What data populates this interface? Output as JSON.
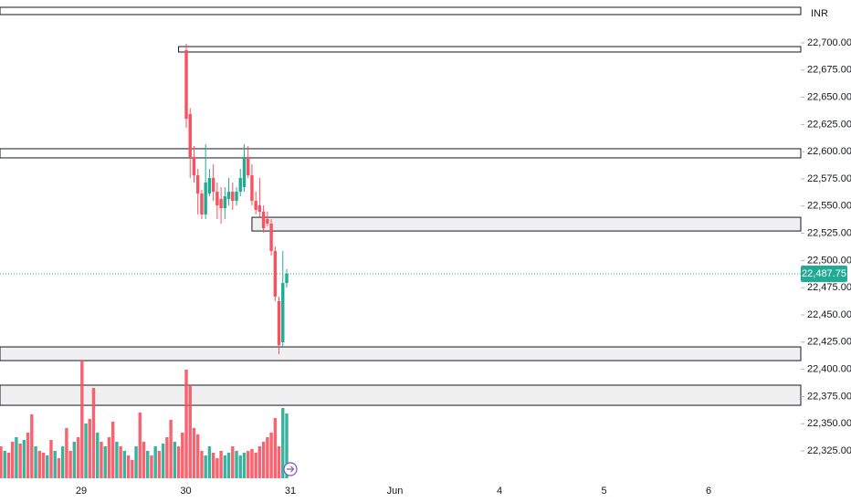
{
  "chart_data": {
    "type": "candlestick",
    "currency": "INR",
    "ylim": [
      22303.2,
      22739.4
    ],
    "yticks": [
      {
        "value": 22325,
        "label": "22,325.00"
      },
      {
        "value": 22350,
        "label": "22,350.00"
      },
      {
        "value": 22375,
        "label": "22,375.00"
      },
      {
        "value": 22400,
        "label": "22,400.00"
      },
      {
        "value": 22425,
        "label": "22,425.00"
      },
      {
        "value": 22450,
        "label": "22,450.00"
      },
      {
        "value": 22475,
        "label": "22,475.00"
      },
      {
        "value": 22500,
        "label": "22,500.00"
      },
      {
        "value": 22525,
        "label": "22,525.00"
      },
      {
        "value": 22550,
        "label": "22,550.00"
      },
      {
        "value": 22575,
        "label": "22,575.00"
      },
      {
        "value": 22600,
        "label": "22,600.00"
      },
      {
        "value": 22625,
        "label": "22,625.00"
      },
      {
        "value": 22650,
        "label": "22,650.00"
      },
      {
        "value": 22675,
        "label": "22,675.00"
      },
      {
        "value": 22700,
        "label": "22,700.00"
      }
    ],
    "categories": [
      "29",
      "30",
      "31",
      "Jun",
      "4",
      "5",
      "6"
    ],
    "up_color": "#22ab94",
    "down_color": "#f7525f",
    "candles": [
      {
        "o": 22693.3,
        "h": 22699.1,
        "l": 22621.9,
        "c": 22630.3
      },
      {
        "o": 22634.5,
        "h": 22640.0,
        "l": 22575.8,
        "c": 22595.1
      },
      {
        "o": 22595.1,
        "h": 22605.2,
        "l": 22571.6,
        "c": 22578.3
      },
      {
        "o": 22578.3,
        "h": 22584.2,
        "l": 22542.3,
        "c": 22561.6
      },
      {
        "o": 22561.6,
        "h": 22565.0,
        "l": 22538.1,
        "c": 22542.3
      },
      {
        "o": 22542.3,
        "h": 22606.9,
        "l": 22538.1,
        "c": 22571.6
      },
      {
        "o": 22561.6,
        "h": 22584.2,
        "l": 22559.0,
        "c": 22575.8
      },
      {
        "o": 22575.8,
        "h": 22588.4,
        "l": 22554.8,
        "c": 22563.2
      },
      {
        "o": 22563.2,
        "h": 22571.6,
        "l": 22538.1,
        "c": 22550.6
      },
      {
        "o": 22556.5,
        "h": 22567.4,
        "l": 22533.9,
        "c": 22548.1
      },
      {
        "o": 22548.1,
        "h": 22567.4,
        "l": 22538.1,
        "c": 22559.0
      },
      {
        "o": 22556.5,
        "h": 22575.8,
        "l": 22550.6,
        "c": 22563.2
      },
      {
        "o": 22563.2,
        "h": 22571.6,
        "l": 22546.5,
        "c": 22554.8
      },
      {
        "o": 22554.8,
        "h": 22567.4,
        "l": 22550.6,
        "c": 22563.2
      },
      {
        "o": 22563.2,
        "h": 22584.2,
        "l": 22559.0,
        "c": 22575.8
      },
      {
        "o": 22567.4,
        "h": 22606.9,
        "l": 22563.2,
        "c": 22595.1
      },
      {
        "o": 22595.1,
        "h": 22605.2,
        "l": 22575.8,
        "c": 22578.3
      },
      {
        "o": 22578.3,
        "h": 22588.4,
        "l": 22550.6,
        "c": 22554.8
      },
      {
        "o": 22554.8,
        "h": 22563.2,
        "l": 22542.3,
        "c": 22546.5
      },
      {
        "o": 22550.6,
        "h": 22575.8,
        "l": 22539.7,
        "c": 22544.8
      },
      {
        "o": 22544.8,
        "h": 22550.6,
        "l": 22525.5,
        "c": 22529.7
      },
      {
        "o": 22538.1,
        "h": 22544.8,
        "l": 22531.4,
        "c": 22533.9
      },
      {
        "o": 22533.9,
        "h": 22538.1,
        "l": 22504.5,
        "c": 22508.7
      },
      {
        "o": 22508.7,
        "h": 22513.0,
        "l": 22462.6,
        "c": 22466.8
      },
      {
        "o": 22462.6,
        "h": 22466.8,
        "l": 22413.9,
        "c": 22422.3
      },
      {
        "o": 22424.8,
        "h": 22508.7,
        "l": 22420.6,
        "c": 22479.3
      },
      {
        "o": 22479.3,
        "h": 22492.0,
        "l": 22475.1,
        "c": 22487.75
      }
    ],
    "price_line": {
      "value": 22487.75,
      "label": "22,487.75"
    },
    "zones": [
      {
        "top": 22732.7,
        "bottom": 22726.0,
        "fill": "#ffffff"
      },
      {
        "top": 22696.6,
        "bottom": 22691.6,
        "fill": "#ffffff",
        "from_candle": 0
      },
      {
        "top": 22602.7,
        "bottom": 22594.3,
        "fill": "#ffffff"
      },
      {
        "top": 22539.7,
        "bottom": 22527.1,
        "fill": "#f0f0f0",
        "from_candle": 19
      },
      {
        "top": 22420.6,
        "bottom": 22408.0,
        "fill": "#f0f0f0"
      },
      {
        "top": 22385.4,
        "bottom": 22366.9,
        "fill": "#f0f0f0"
      }
    ],
    "volume": {
      "values": [
        35,
        30,
        28,
        40,
        45,
        38,
        42,
        50,
        70,
        35,
        30,
        28,
        25,
        42,
        30,
        22,
        35,
        55,
        30,
        40,
        45,
        129,
        60,
        65,
        99,
        50,
        40,
        35,
        45,
        62,
        40,
        35,
        30,
        25,
        20,
        35,
        72,
        40,
        30,
        25,
        35,
        30,
        38,
        45,
        64,
        40,
        35,
        50,
        119,
        102,
        55,
        48,
        30,
        25,
        35,
        28,
        22,
        30,
        25,
        28,
        35,
        30,
        25,
        28,
        30,
        32,
        28,
        35,
        40,
        45,
        50,
        66,
        35,
        77,
        71
      ],
      "colors": [
        "#f7525f",
        "#22ab94",
        "#f7525f",
        "#f7525f",
        "#22ab94",
        "#f7525f",
        "#22ab94",
        "#f7525f",
        "#f7525f",
        "#22ab94",
        "#f7525f",
        "#f7525f",
        "#22ab94",
        "#f7525f",
        "#22ab94",
        "#f7525f",
        "#22ab94",
        "#f7525f",
        "#f7525f",
        "#22ab94",
        "#f7525f",
        "#f7525f",
        "#22ab94",
        "#f7525f",
        "#f7525f",
        "#22ab94",
        "#f7525f",
        "#22ab94",
        "#f7525f",
        "#f7525f",
        "#22ab94",
        "#f7525f",
        "#22ab94",
        "#f7525f",
        "#f7525f",
        "#22ab94",
        "#f7525f",
        "#f7525f",
        "#22ab94",
        "#f7525f",
        "#22ab94",
        "#f7525f",
        "#22ab94",
        "#f7525f",
        "#f7525f",
        "#22ab94",
        "#f7525f",
        "#f7525f",
        "#f7525f",
        "#f7525f",
        "#f7525f",
        "#f7525f",
        "#f7525f",
        "#22ab94",
        "#22ab94",
        "#f7525f",
        "#f7525f",
        "#f7525f",
        "#22ab94",
        "#22ab94",
        "#f7525f",
        "#22ab94",
        "#22ab94",
        "#22ab94",
        "#f7525f",
        "#f7525f",
        "#f7525f",
        "#f7525f",
        "#f7525f",
        "#f7525f",
        "#f7525f",
        "#f7525f",
        "#f7525f",
        "#22ab94",
        "#22ab94"
      ]
    }
  }
}
